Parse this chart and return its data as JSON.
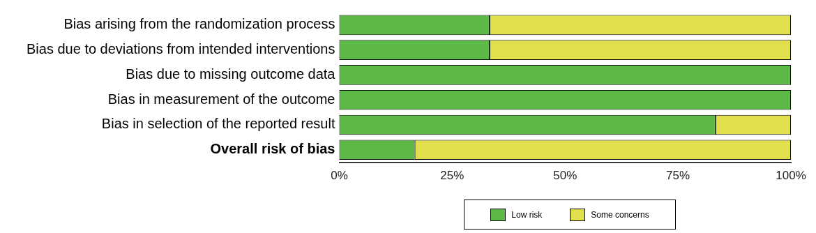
{
  "chart_data": {
    "type": "bar",
    "orientation": "horizontal",
    "stacked": true,
    "categories": [
      "Bias arising from the randomization process",
      "Bias due to deviations from intended interventions",
      "Bias due to missing outcome data",
      "Bias in measurement of the outcome",
      "Bias in selection of the reported result",
      "Overall risk of bias"
    ],
    "series": [
      {
        "name": "Low risk",
        "color": "#5cb946",
        "values": [
          33.3,
          33.3,
          100,
          100,
          83.3,
          16.7
        ]
      },
      {
        "name": "Some concerns",
        "color": "#e2df4d",
        "values": [
          66.7,
          66.7,
          0,
          0,
          16.7,
          83.3
        ]
      }
    ],
    "xlim": [
      0,
      100
    ],
    "xticks": [
      {
        "value": 0,
        "label": "0%"
      },
      {
        "value": 25,
        "label": "25%"
      },
      {
        "value": 50,
        "label": "50%"
      },
      {
        "value": 75,
        "label": "75%"
      },
      {
        "value": 100,
        "label": "100%"
      }
    ],
    "grid": false,
    "legend": "bottom"
  }
}
